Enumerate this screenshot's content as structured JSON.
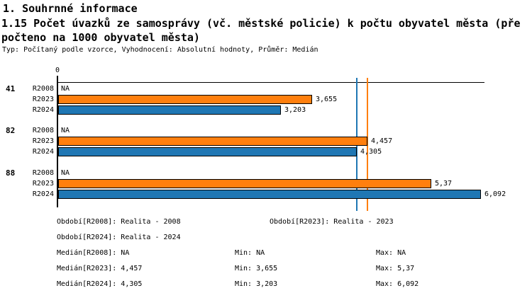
{
  "header": {
    "section_title": "1. Souhrnné informace",
    "indicator_title_line1": "1.15 Počet úvazků ze samosprávy (vč. městské policie) k počtu obyvatel města (pře",
    "indicator_title_line2": "počteno na 1000 obyvatel města)",
    "meta": "Typ: Počítaný podle vzorce, Vyhodnocení: Absolutní hodnoty, Průměr: Medián"
  },
  "chart_data": {
    "type": "bar",
    "orientation": "horizontal",
    "axis_origin_label": "0",
    "categories": [
      "41",
      "82",
      "88"
    ],
    "series": [
      {
        "name": "R2008",
        "color": "#ffffff",
        "values": [
          null,
          null,
          null
        ],
        "labels": [
          "NA",
          "NA",
          "NA"
        ]
      },
      {
        "name": "R2023",
        "color": "#ff7f0e",
        "values": [
          3.655,
          4.457,
          5.37
        ],
        "labels": [
          "3,655",
          "4,457",
          "5,37"
        ]
      },
      {
        "name": "R2024",
        "color": "#1f77b4",
        "values": [
          3.203,
          4.305,
          6.092
        ],
        "labels": [
          "3,203",
          "4,305",
          "6,092"
        ]
      }
    ],
    "reference_lines": [
      {
        "name": "median-r2024",
        "value": 4.305,
        "color": "#1f77b4"
      },
      {
        "name": "median-r2023",
        "value": 4.457,
        "color": "#ff7f0e"
      }
    ],
    "xlim": [
      0,
      6.15
    ],
    "grid": false,
    "legend_position": "none"
  },
  "stats": {
    "items": [
      {
        "name": "obdobi-r2008",
        "text": "Období[R2008]: Realita - 2008",
        "row": 0,
        "col": "left"
      },
      {
        "name": "obdobi-r2023",
        "text": "Období[R2023]: Realita - 2023",
        "row": 0,
        "col": "mid-wide"
      },
      {
        "name": "obdobi-r2024",
        "text": "Období[R2024]: Realita - 2024",
        "row": 1,
        "col": "left"
      },
      {
        "name": "median-r2008",
        "text": "Medián[R2008]: NA",
        "row": 2,
        "col": "left"
      },
      {
        "name": "min-r2008",
        "text": "Min: NA",
        "row": 2,
        "col": "min"
      },
      {
        "name": "max-r2008",
        "text": "Max: NA",
        "row": 2,
        "col": "max"
      },
      {
        "name": "median-r2023",
        "text": "Medián[R2023]: 4,457",
        "row": 3,
        "col": "left"
      },
      {
        "name": "min-r2023",
        "text": "Min: 3,655",
        "row": 3,
        "col": "min"
      },
      {
        "name": "max-r2023",
        "text": "Max: 5,37",
        "row": 3,
        "col": "max"
      },
      {
        "name": "median-r2024",
        "text": "Medián[R2024]: 4,305",
        "row": 4,
        "col": "left"
      },
      {
        "name": "min-r2024",
        "text": "Min: 3,203",
        "row": 4,
        "col": "min"
      },
      {
        "name": "max-r2024",
        "text": "Max: 6,092",
        "row": 4,
        "col": "max"
      }
    ]
  }
}
